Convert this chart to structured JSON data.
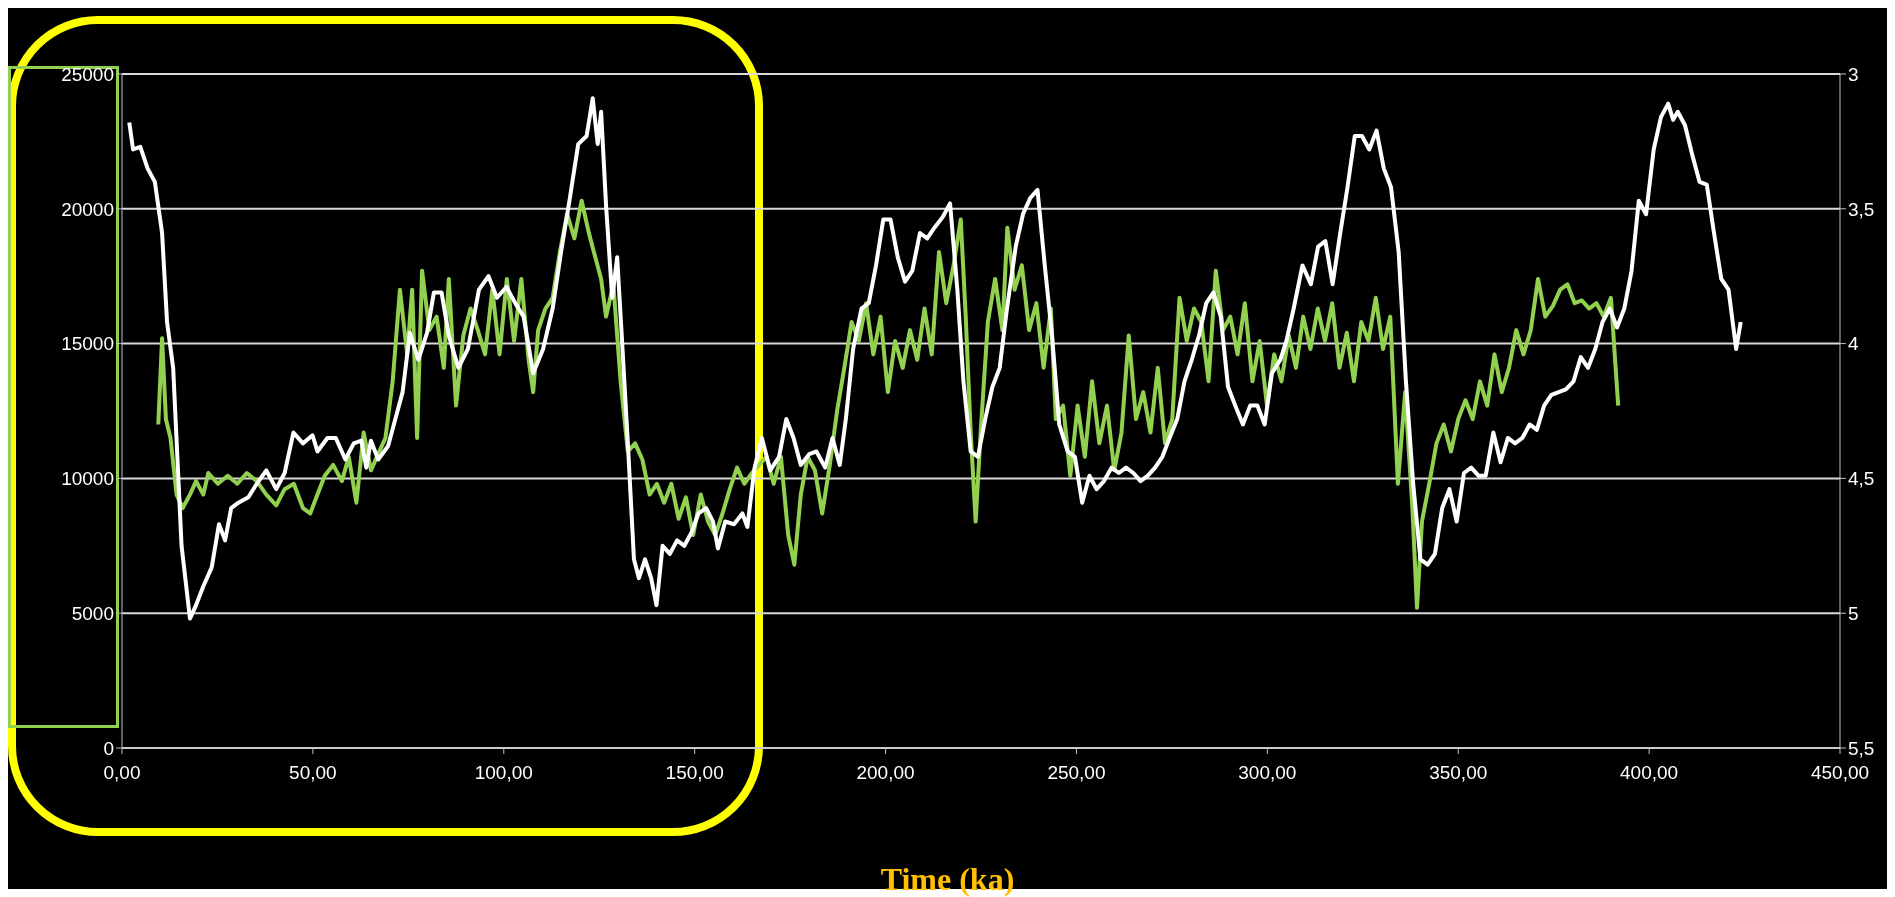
{
  "chart_data": {
    "type": "line",
    "xlabel": "Time (ka)",
    "xlim": [
      0,
      450
    ],
    "xticks": [
      {
        "value": 0,
        "label": "0,00"
      },
      {
        "value": 50,
        "label": "50,00"
      },
      {
        "value": 100,
        "label": "100,00"
      },
      {
        "value": 150,
        "label": "150,00"
      },
      {
        "value": 200,
        "label": "200,00"
      },
      {
        "value": 250,
        "label": "250,00"
      },
      {
        "value": 300,
        "label": "300,00"
      },
      {
        "value": 350,
        "label": "350,00"
      },
      {
        "value": 400,
        "label": "400,00"
      },
      {
        "value": 450,
        "label": "450,00"
      }
    ],
    "ylim": [
      0,
      25000
    ],
    "yticks": [
      0,
      5000,
      10000,
      15000,
      20000,
      25000
    ],
    "y2lim": [
      5.5,
      3
    ],
    "y2ticks": [
      {
        "value": 3,
        "label": "3"
      },
      {
        "value": 3.5,
        "label": "3,5"
      },
      {
        "value": 4,
        "label": "4"
      },
      {
        "value": 4.5,
        "label": "4,5"
      },
      {
        "value": 5,
        "label": "5"
      },
      {
        "value": 5.5,
        "label": "5,5"
      }
    ],
    "grid": "y",
    "series": [
      {
        "color": "#92d050",
        "x": [
          9.5,
          10.5,
          11.5,
          12.7,
          14.3,
          15.9,
          17.8,
          19.4,
          21.3,
          22.6,
          25.1,
          27.7,
          30.2,
          32.7,
          35.3,
          37.8,
          40.4,
          42.6,
          45,
          47.4,
          49.3,
          51.2,
          53.1,
          55.3,
          57.6,
          59.4,
          61.4,
          63.3,
          65.2,
          67.1,
          69,
          70.9,
          72.8,
          74.7,
          76,
          77.3,
          78.6,
          80.5,
          82.4,
          84.3,
          85.6,
          87.5,
          89.4,
          91.3,
          93.2,
          95.1,
          97,
          98.9,
          100.8,
          102.7,
          104.6,
          106.5,
          107.7,
          109,
          110.9,
          112.8,
          114.7,
          116.6,
          118.5,
          120.4,
          122.3,
          123.6,
          125.5,
          126.8,
          128.7,
          130.6,
          132.5,
          134.4,
          136.3,
          138.2,
          140.1,
          142,
          143.9,
          145.8,
          147.7,
          149.6,
          151.6,
          153.5,
          155.4,
          157.3,
          159.2,
          161.1,
          163,
          165,
          166.9,
          168.8,
          170.7,
          172.6,
          174.5,
          176.1,
          177.8,
          179.6,
          181.5,
          183.4,
          185.4,
          187.3,
          189.2,
          191.1,
          193,
          194.9,
          196.8,
          198.7,
          200.6,
          202.5,
          204.5,
          206.4,
          208.3,
          210.2,
          212.1,
          214,
          215.9,
          217.8,
          219.7,
          221,
          222.3,
          223.6,
          224.9,
          226.8,
          228.7,
          230.6,
          231.9,
          233.8,
          235.7,
          237.6,
          239.5,
          241.4,
          243.3,
          244.6,
          246.5,
          248.4,
          250.3,
          252.2,
          254.1,
          256,
          258,
          259.9,
          261.8,
          263.7,
          265.6,
          267.5,
          269.4,
          271.3,
          273.2,
          275.1,
          277,
          278.9,
          280.8,
          282.7,
          284.6,
          286.5,
          288.4,
          290.3,
          292.2,
          294.1,
          296.1,
          298,
          299.9,
          301.8,
          303.7,
          305.6,
          307.5,
          309.4,
          311.3,
          313.2,
          315.1,
          317,
          318.9,
          320.8,
          322.7,
          324.6,
          326.5,
          328.4,
          330.3,
          332.2,
          334.2,
          336.1,
          338,
          339.2,
          340.5,
          342.4,
          344.3,
          346.2,
          348.1,
          350,
          351.9,
          353.8,
          355.7,
          357.6,
          359.5,
          361.4,
          363.3,
          365.2,
          367.1,
          369,
          370.9,
          372.8,
          374.8,
          376.7,
          378.6,
          380.5,
          382.4,
          384.3,
          386.2,
          388.1,
          390,
          391.9
        ],
        "values": [
          12000,
          15200,
          12200,
          11500,
          9400,
          8900,
          9400,
          9900,
          9400,
          10200,
          9800,
          10100,
          9800,
          10200,
          9900,
          9400,
          9000,
          9600,
          9800,
          8900,
          8700,
          9400,
          10100,
          10500,
          9900,
          10800,
          9100,
          11700,
          10300,
          10900,
          11500,
          13600,
          17000,
          14600,
          17000,
          11500,
          17700,
          15500,
          16000,
          14100,
          17400,
          12700,
          15300,
          16300,
          15500,
          14600,
          17000,
          14600,
          17400,
          15100,
          17400,
          14400,
          13200,
          15500,
          16300,
          16700,
          18400,
          19800,
          18900,
          20300,
          19100,
          18400,
          17400,
          16000,
          17200,
          13600,
          11000,
          11300,
          10700,
          9400,
          9800,
          9100,
          9800,
          8500,
          9300,
          7900,
          9400,
          8400,
          7900,
          8700,
          9600,
          10400,
          9800,
          10200,
          10500,
          10800,
          9800,
          10800,
          7900,
          6800,
          9400,
          10800,
          10300,
          8700,
          10500,
          12500,
          14100,
          15800,
          15100,
          16500,
          14600,
          16000,
          13200,
          15100,
          14100,
          15500,
          14400,
          16300,
          14600,
          18400,
          16500,
          17900,
          19600,
          16000,
          11700,
          8400,
          11700,
          15800,
          17400,
          15500,
          19300,
          17000,
          17900,
          15500,
          16500,
          14100,
          16300,
          12200,
          12700,
          10100,
          12700,
          10800,
          13600,
          11300,
          12700,
          10300,
          11700,
          15300,
          12200,
          13200,
          11700,
          14100,
          11300,
          12200,
          16700,
          15100,
          16300,
          15800,
          13600,
          17700,
          15500,
          16000,
          14600,
          16500,
          13600,
          15100,
          12700,
          14600,
          13600,
          15300,
          14100,
          16000,
          14800,
          16300,
          15100,
          16500,
          14100,
          15400,
          13600,
          15800,
          15100,
          16700,
          14800,
          16000,
          9800,
          13200,
          8900,
          5200,
          8400,
          9800,
          11300,
          12000,
          11000,
          12200,
          12900,
          12200,
          13600,
          12700,
          14600,
          13200,
          14100,
          15500,
          14600,
          15500,
          17400,
          16000,
          16400,
          17000,
          17200,
          16500,
          16600,
          16300,
          16500,
          16000,
          16700,
          12700
        ]
      },
      {
        "color": "#ffffff",
        "axis": "y2",
        "x": [
          1.9,
          2.9,
          4.8,
          6.7,
          8.6,
          10.5,
          11.8,
          13.4,
          15.6,
          17.8,
          19.4,
          21.3,
          23.5,
          25.4,
          27,
          28.6,
          30.5,
          33.1,
          35.3,
          37.8,
          40.4,
          42.6,
          44.9,
          47.4,
          49.9,
          51.2,
          53.8,
          56,
          58.5,
          60.7,
          62.7,
          64,
          65.2,
          67.1,
          69.7,
          71.6,
          73.5,
          75.4,
          77.6,
          79.9,
          81.7,
          83.7,
          85.6,
          88.1,
          90.6,
          93.5,
          96,
          98.2,
          100.7,
          103,
          105.2,
          107.7,
          110.3,
          112.8,
          115,
          117.2,
          119.5,
          121.7,
          123.3,
          124.6,
          125.5,
          126.8,
          128.4,
          129.7,
          130.9,
          132.5,
          134.1,
          135.4,
          137,
          138.6,
          140,
          141.6,
          143.5,
          145.4,
          147.3,
          149.2,
          151,
          153,
          154.8,
          156.1,
          158,
          160.3,
          162.5,
          163.8,
          165.7,
          167.6,
          169.8,
          172.1,
          174,
          175.9,
          177.8,
          180,
          181.9,
          184.2,
          186.1,
          188,
          189.6,
          191.5,
          193.7,
          195.6,
          197.5,
          199.4,
          201.3,
          203.2,
          205.1,
          207,
          209,
          210.9,
          212.8,
          215,
          216.9,
          218.8,
          220.4,
          222.3,
          224.2,
          226.1,
          228,
          229.9,
          231.8,
          234.1,
          236,
          237.9,
          239.8,
          241.7,
          243.6,
          245.5,
          247.7,
          249.6,
          251.5,
          253.4,
          255.3,
          257.2,
          259.2,
          261.1,
          263,
          264.9,
          266.8,
          268.7,
          270.6,
          272.5,
          274.4,
          276.4,
          278.3,
          280.2,
          282.1,
          284,
          285.9,
          287.8,
          289.7,
          291.6,
          293.6,
          295.5,
          297.4,
          299.3,
          301.2,
          303.4,
          305,
          306.9,
          309.2,
          311.4,
          313.3,
          315.2,
          317.1,
          319.1,
          321,
          322.9,
          324.8,
          326.7,
          328.6,
          330.5,
          332.4,
          334.4,
          336.3,
          338.2,
          340.1,
          342,
          343.9,
          345.8,
          347.7,
          349.6,
          351.5,
          353.4,
          355.3,
          357.2,
          359.2,
          361.1,
          363,
          364.9,
          366.8,
          368.7,
          370.6,
          372.5,
          374.4,
          376.3,
          378.2,
          380.2,
          382.1,
          384,
          385.9,
          387.8,
          389.7,
          391.6,
          393.5,
          395.4,
          397.3,
          399.2,
          401.2,
          403.1,
          405,
          406.3,
          407.5,
          409.4,
          411.3,
          413.2,
          415.1,
          417,
          418.9,
          420.8,
          422.8,
          424
        ],
        "values": [
          3.18,
          3.28,
          3.27,
          3.35,
          3.4,
          3.59,
          3.92,
          4.09,
          4.75,
          5.02,
          4.97,
          4.9,
          4.83,
          4.67,
          4.73,
          4.61,
          4.59,
          4.57,
          4.52,
          4.47,
          4.54,
          4.48,
          4.33,
          4.37,
          4.34,
          4.4,
          4.35,
          4.35,
          4.43,
          4.37,
          4.36,
          4.46,
          4.36,
          4.43,
          4.38,
          4.28,
          4.18,
          3.96,
          4.06,
          3.96,
          3.81,
          3.81,
          3.97,
          4.09,
          4.02,
          3.8,
          3.75,
          3.83,
          3.79,
          3.85,
          3.9,
          4.11,
          4.02,
          3.87,
          3.66,
          3.47,
          3.26,
          3.23,
          3.09,
          3.26,
          3.14,
          3.49,
          3.83,
          3.68,
          3.97,
          4.37,
          4.8,
          4.87,
          4.8,
          4.87,
          4.97,
          4.75,
          4.78,
          4.73,
          4.75,
          4.7,
          4.63,
          4.61,
          4.66,
          4.76,
          4.66,
          4.67,
          4.63,
          4.68,
          4.46,
          4.35,
          4.47,
          4.42,
          4.28,
          4.35,
          4.45,
          4.41,
          4.4,
          4.46,
          4.35,
          4.45,
          4.28,
          4.02,
          3.87,
          3.85,
          3.71,
          3.54,
          3.54,
          3.68,
          3.77,
          3.73,
          3.59,
          3.61,
          3.57,
          3.53,
          3.48,
          3.8,
          4.14,
          4.4,
          4.42,
          4.28,
          4.16,
          4.09,
          3.87,
          3.64,
          3.52,
          3.46,
          3.43,
          3.71,
          3.97,
          4.3,
          4.4,
          4.42,
          4.59,
          4.49,
          4.54,
          4.51,
          4.46,
          4.48,
          4.46,
          4.48,
          4.51,
          4.49,
          4.46,
          4.42,
          4.35,
          4.28,
          4.14,
          4.06,
          3.97,
          3.85,
          3.81,
          3.9,
          4.16,
          4.23,
          4.3,
          4.23,
          4.23,
          4.3,
          4.11,
          4.06,
          3.99,
          3.87,
          3.71,
          3.78,
          3.64,
          3.62,
          3.78,
          3.59,
          3.42,
          3.23,
          3.23,
          3.28,
          3.21,
          3.35,
          3.42,
          3.66,
          4.14,
          4.52,
          4.8,
          4.82,
          4.78,
          4.61,
          4.54,
          4.66,
          4.48,
          4.46,
          4.49,
          4.49,
          4.33,
          4.44,
          4.35,
          4.37,
          4.35,
          4.3,
          4.32,
          4.23,
          4.19,
          4.18,
          4.17,
          4.14,
          4.05,
          4.09,
          4.02,
          3.92,
          3.87,
          3.94,
          3.87,
          3.73,
          3.47,
          3.52,
          3.28,
          3.16,
          3.11,
          3.17,
          3.14,
          3.19,
          3.3,
          3.4,
          3.41,
          3.59,
          3.76,
          3.8,
          4.02,
          3.92
        ]
      }
    ]
  }
}
